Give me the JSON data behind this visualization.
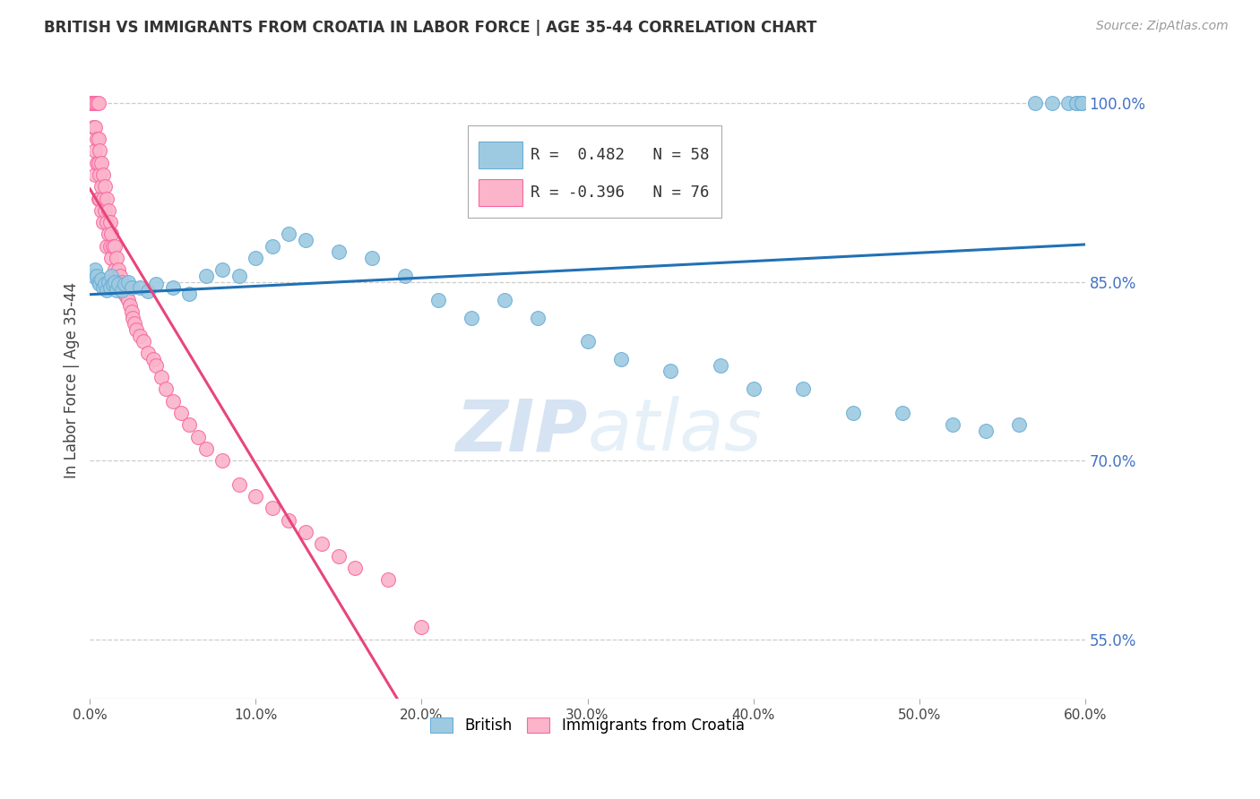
{
  "title": "BRITISH VS IMMIGRANTS FROM CROATIA IN LABOR FORCE | AGE 35-44 CORRELATION CHART",
  "source": "Source: ZipAtlas.com",
  "ylabel": "In Labor Force | Age 35-44",
  "xlim": [
    0.0,
    0.6
  ],
  "ylim": [
    0.5,
    1.035
  ],
  "xticks": [
    0.0,
    0.1,
    0.2,
    0.3,
    0.4,
    0.5,
    0.6
  ],
  "xticklabels": [
    "0.0%",
    "10.0%",
    "20.0%",
    "30.0%",
    "40.0%",
    "50.0%",
    "60.0%"
  ],
  "yticks": [
    0.55,
    0.7,
    0.85,
    1.0
  ],
  "yticklabels": [
    "55.0%",
    "70.0%",
    "85.0%",
    "100.0%"
  ],
  "british_color": "#9ecae1",
  "british_edge": "#6baed6",
  "croatia_color": "#fbb4ca",
  "croatia_edge": "#f768a1",
  "british_line_color": "#2171b5",
  "croatia_line_color": "#e8457a",
  "british_R": 0.482,
  "british_N": 58,
  "croatia_R": -0.396,
  "croatia_N": 76,
  "watermark_zip": "ZIP",
  "watermark_atlas": "atlas",
  "watermark_color": "#d0e4f7",
  "british_scatter_x": [
    0.002,
    0.003,
    0.004,
    0.005,
    0.006,
    0.007,
    0.008,
    0.009,
    0.01,
    0.011,
    0.012,
    0.013,
    0.014,
    0.015,
    0.016,
    0.017,
    0.019,
    0.021,
    0.023,
    0.025,
    0.03,
    0.035,
    0.04,
    0.05,
    0.06,
    0.07,
    0.08,
    0.09,
    0.1,
    0.11,
    0.12,
    0.13,
    0.15,
    0.17,
    0.19,
    0.21,
    0.23,
    0.25,
    0.27,
    0.3,
    0.32,
    0.35,
    0.38,
    0.4,
    0.43,
    0.46,
    0.49,
    0.52,
    0.54,
    0.56,
    0.57,
    0.58,
    0.59,
    0.595,
    0.595,
    0.598,
    0.598,
    0.598
  ],
  "british_scatter_y": [
    0.855,
    0.86,
    0.855,
    0.85,
    0.848,
    0.852,
    0.845,
    0.848,
    0.843,
    0.85,
    0.845,
    0.855,
    0.848,
    0.85,
    0.843,
    0.848,
    0.843,
    0.848,
    0.85,
    0.845,
    0.845,
    0.842,
    0.848,
    0.845,
    0.84,
    0.855,
    0.86,
    0.855,
    0.87,
    0.88,
    0.89,
    0.885,
    0.875,
    0.87,
    0.855,
    0.835,
    0.82,
    0.835,
    0.82,
    0.8,
    0.785,
    0.775,
    0.78,
    0.76,
    0.76,
    0.74,
    0.74,
    0.73,
    0.725,
    0.73,
    1.0,
    1.0,
    1.0,
    1.0,
    1.0,
    1.0,
    1.0,
    1.0
  ],
  "croatia_scatter_x": [
    0.001,
    0.001,
    0.001,
    0.002,
    0.002,
    0.002,
    0.003,
    0.003,
    0.003,
    0.003,
    0.004,
    0.004,
    0.004,
    0.005,
    0.005,
    0.005,
    0.005,
    0.006,
    0.006,
    0.006,
    0.007,
    0.007,
    0.007,
    0.008,
    0.008,
    0.008,
    0.009,
    0.009,
    0.01,
    0.01,
    0.01,
    0.011,
    0.011,
    0.012,
    0.012,
    0.013,
    0.013,
    0.014,
    0.015,
    0.015,
    0.016,
    0.017,
    0.018,
    0.019,
    0.02,
    0.021,
    0.022,
    0.023,
    0.024,
    0.025,
    0.026,
    0.027,
    0.028,
    0.03,
    0.032,
    0.035,
    0.038,
    0.04,
    0.043,
    0.046,
    0.05,
    0.055,
    0.06,
    0.065,
    0.07,
    0.08,
    0.09,
    0.1,
    0.11,
    0.12,
    0.13,
    0.14,
    0.15,
    0.16,
    0.18,
    0.2
  ],
  "croatia_scatter_y": [
    1.0,
    1.0,
    1.0,
    1.0,
    1.0,
    0.98,
    1.0,
    0.98,
    0.96,
    0.94,
    1.0,
    0.97,
    0.95,
    1.0,
    0.97,
    0.95,
    0.92,
    0.96,
    0.94,
    0.92,
    0.95,
    0.93,
    0.91,
    0.94,
    0.92,
    0.9,
    0.93,
    0.91,
    0.92,
    0.9,
    0.88,
    0.91,
    0.89,
    0.9,
    0.88,
    0.89,
    0.87,
    0.88,
    0.88,
    0.86,
    0.87,
    0.86,
    0.855,
    0.85,
    0.845,
    0.84,
    0.838,
    0.835,
    0.83,
    0.825,
    0.82,
    0.815,
    0.81,
    0.805,
    0.8,
    0.79,
    0.785,
    0.78,
    0.77,
    0.76,
    0.75,
    0.74,
    0.73,
    0.72,
    0.71,
    0.7,
    0.68,
    0.67,
    0.66,
    0.65,
    0.64,
    0.63,
    0.62,
    0.61,
    0.6,
    0.56
  ]
}
